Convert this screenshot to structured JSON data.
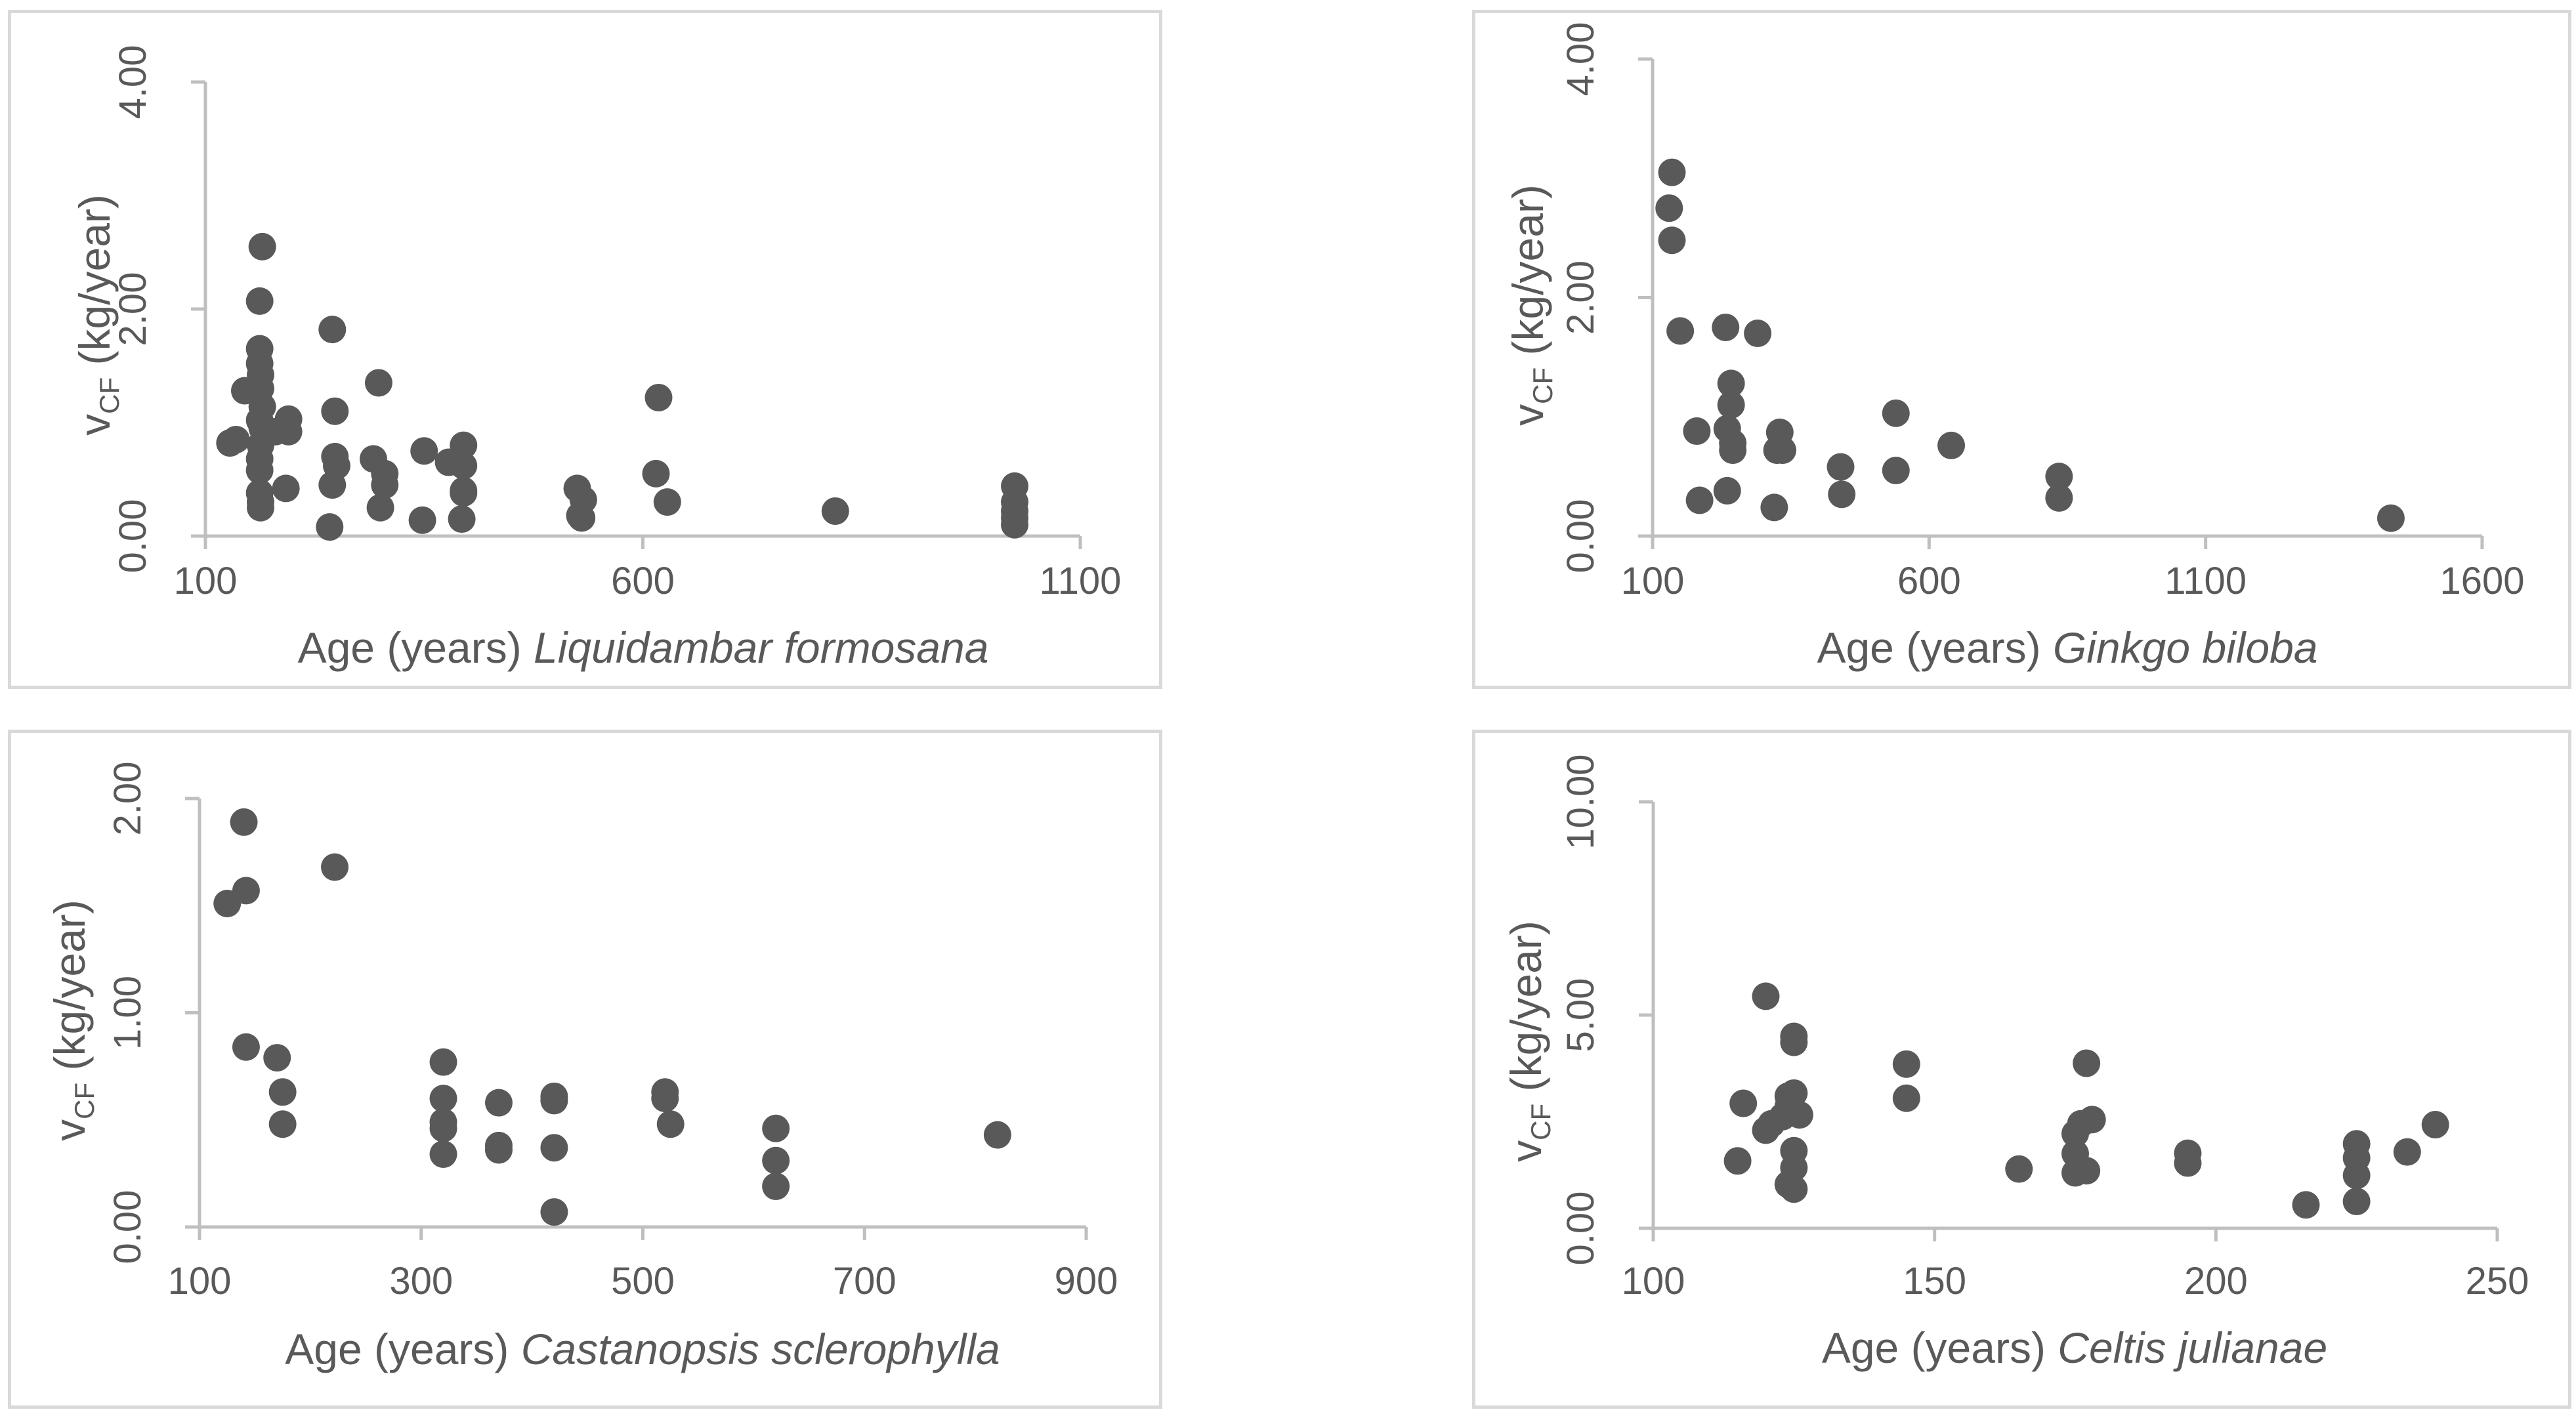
{
  "chart_data": [
    {
      "type": "scatter",
      "id": "liquidambar",
      "xlabel_prefix": "Age (years) ",
      "xlabel_species": "Liquidambar formosana",
      "ylabel_base": "v",
      "ylabel_sub": "CF",
      "ylabel_unit": " (kg/year)",
      "xlim": [
        100,
        1100
      ],
      "ylim": [
        0,
        4
      ],
      "xticks": [
        100,
        600,
        1100
      ],
      "xtick_labels": [
        "100",
        "600",
        "1100"
      ],
      "yticks": [
        0,
        2,
        4
      ],
      "ytick_labels": [
        "0.00",
        "2.00",
        "4.00"
      ],
      "points": [
        [
          128,
          0.82
        ],
        [
          135,
          0.85
        ],
        [
          145,
          1.28
        ],
        [
          165,
          2.55
        ],
        [
          162,
          2.07
        ],
        [
          162,
          1.65
        ],
        [
          162,
          1.52
        ],
        [
          163,
          1.42
        ],
        [
          163,
          1.3
        ],
        [
          165,
          1.14
        ],
        [
          162,
          1.02
        ],
        [
          165,
          0.95
        ],
        [
          163,
          0.8
        ],
        [
          162,
          0.68
        ],
        [
          162,
          0.58
        ],
        [
          162,
          0.38
        ],
        [
          163,
          0.3
        ],
        [
          163,
          0.25
        ],
        [
          180,
          0.92
        ],
        [
          195,
          1.03
        ],
        [
          195,
          0.92
        ],
        [
          192,
          0.42
        ],
        [
          245,
          1.82
        ],
        [
          248,
          1.1
        ],
        [
          248,
          0.7
        ],
        [
          250,
          0.62
        ],
        [
          245,
          0.45
        ],
        [
          242,
          0.08
        ],
        [
          292,
          0.68
        ],
        [
          298,
          1.35
        ],
        [
          305,
          0.55
        ],
        [
          305,
          0.45
        ],
        [
          300,
          0.25
        ],
        [
          350,
          0.75
        ],
        [
          348,
          0.14
        ],
        [
          378,
          0.65
        ],
        [
          395,
          0.8
        ],
        [
          395,
          0.62
        ],
        [
          395,
          0.4
        ],
        [
          395,
          0.38
        ],
        [
          393,
          0.15
        ],
        [
          525,
          0.42
        ],
        [
          532,
          0.32
        ],
        [
          528,
          0.18
        ],
        [
          530,
          0.16
        ],
        [
          618,
          1.22
        ],
        [
          615,
          0.55
        ],
        [
          628,
          0.3
        ],
        [
          820,
          0.22
        ],
        [
          1025,
          0.44
        ],
        [
          1025,
          0.3
        ],
        [
          1025,
          0.22
        ],
        [
          1025,
          0.16
        ],
        [
          1025,
          0.1
        ]
      ]
    },
    {
      "type": "scatter",
      "id": "ginkgo",
      "xlabel_prefix": "Age (years) ",
      "xlabel_species": "Ginkgo biloba",
      "ylabel_base": "v",
      "ylabel_sub": "CF",
      "ylabel_unit": " (kg/year)",
      "xlim": [
        100,
        1600
      ],
      "ylim": [
        0,
        4
      ],
      "xticks": [
        100,
        600,
        1100,
        1600
      ],
      "xtick_labels": [
        "100",
        "600",
        "1100",
        "1600"
      ],
      "yticks": [
        0,
        2,
        4
      ],
      "ytick_labels": [
        "0.00",
        "2.00",
        "4.00"
      ],
      "points": [
        [
          135,
          3.05
        ],
        [
          130,
          2.75
        ],
        [
          135,
          2.48
        ],
        [
          150,
          1.72
        ],
        [
          180,
          0.88
        ],
        [
          185,
          0.3
        ],
        [
          232,
          1.75
        ],
        [
          235,
          0.9
        ],
        [
          235,
          0.38
        ],
        [
          242,
          1.28
        ],
        [
          242,
          1.1
        ],
        [
          245,
          0.78
        ],
        [
          245,
          0.72
        ],
        [
          290,
          1.7
        ],
        [
          325,
          0.72
        ],
        [
          330,
          0.87
        ],
        [
          335,
          0.72
        ],
        [
          320,
          0.24
        ],
        [
          440,
          0.58
        ],
        [
          442,
          0.35
        ],
        [
          540,
          1.03
        ],
        [
          540,
          0.55
        ],
        [
          640,
          0.76
        ],
        [
          835,
          0.5
        ],
        [
          835,
          0.32
        ],
        [
          1435,
          0.15
        ]
      ]
    },
    {
      "type": "scatter",
      "id": "castanopsis",
      "xlabel_prefix": "Age (years) ",
      "xlabel_species": "Castanopsis sclerophylla",
      "ylabel_base": "v",
      "ylabel_sub": "CF",
      "ylabel_unit": " (kg/year)",
      "xlim": [
        100,
        900
      ],
      "ylim": [
        0,
        2
      ],
      "xticks": [
        100,
        300,
        500,
        700,
        900
      ],
      "xtick_labels": [
        "100",
        "300",
        "500",
        "700",
        "900"
      ],
      "yticks": [
        0,
        1,
        2
      ],
      "ytick_labels": [
        "0.00",
        "1.00",
        "2.00"
      ],
      "points": [
        [
          125,
          1.51
        ],
        [
          140,
          1.89
        ],
        [
          142,
          1.57
        ],
        [
          142,
          0.84
        ],
        [
          170,
          0.79
        ],
        [
          175,
          0.63
        ],
        [
          175,
          0.48
        ],
        [
          222,
          1.68
        ],
        [
          320,
          0.77
        ],
        [
          320,
          0.6
        ],
        [
          320,
          0.49
        ],
        [
          320,
          0.46
        ],
        [
          320,
          0.34
        ],
        [
          370,
          0.58
        ],
        [
          370,
          0.38
        ],
        [
          370,
          0.36
        ],
        [
          420,
          0.61
        ],
        [
          420,
          0.59
        ],
        [
          420,
          0.37
        ],
        [
          420,
          0.07
        ],
        [
          520,
          0.63
        ],
        [
          520,
          0.6
        ],
        [
          525,
          0.48
        ],
        [
          620,
          0.46
        ],
        [
          620,
          0.31
        ],
        [
          620,
          0.19
        ],
        [
          820,
          0.43
        ]
      ]
    },
    {
      "type": "scatter",
      "id": "celtis",
      "xlabel_prefix": "Age (years) ",
      "xlabel_species": "Celtis julianae",
      "ylabel_base": "v",
      "ylabel_sub": "CF",
      "ylabel_unit": " (kg/year)",
      "xlim": [
        100,
        250
      ],
      "ylim": [
        0,
        10
      ],
      "xticks": [
        100,
        150,
        200,
        250
      ],
      "xtick_labels": [
        "100",
        "150",
        "200",
        "250"
      ],
      "yticks": [
        0,
        5,
        10
      ],
      "ytick_labels": [
        "0.00",
        "5.00",
        "10.00"
      ],
      "points": [
        [
          115,
          1.58
        ],
        [
          116,
          2.93
        ],
        [
          120,
          5.44
        ],
        [
          120,
          2.3
        ],
        [
          121,
          2.45
        ],
        [
          123,
          2.62
        ],
        [
          124,
          2.86
        ],
        [
          124,
          3.1
        ],
        [
          125,
          4.5
        ],
        [
          125,
          4.36
        ],
        [
          125,
          3.17
        ],
        [
          126,
          2.66
        ],
        [
          125,
          1.82
        ],
        [
          125,
          1.42
        ],
        [
          124,
          1.03
        ],
        [
          125,
          0.92
        ],
        [
          145,
          3.85
        ],
        [
          145,
          3.05
        ],
        [
          165,
          1.39
        ],
        [
          175,
          2.22
        ],
        [
          176,
          2.45
        ],
        [
          175,
          1.75
        ],
        [
          175,
          1.3
        ],
        [
          177,
          3.87
        ],
        [
          177,
          1.35
        ],
        [
          178,
          2.55
        ],
        [
          195,
          1.76
        ],
        [
          195,
          1.53
        ],
        [
          216,
          0.55
        ],
        [
          225,
          1.98
        ],
        [
          225,
          1.65
        ],
        [
          225,
          1.24
        ],
        [
          225,
          0.63
        ],
        [
          234,
          1.79
        ],
        [
          239,
          2.43
        ]
      ]
    }
  ]
}
